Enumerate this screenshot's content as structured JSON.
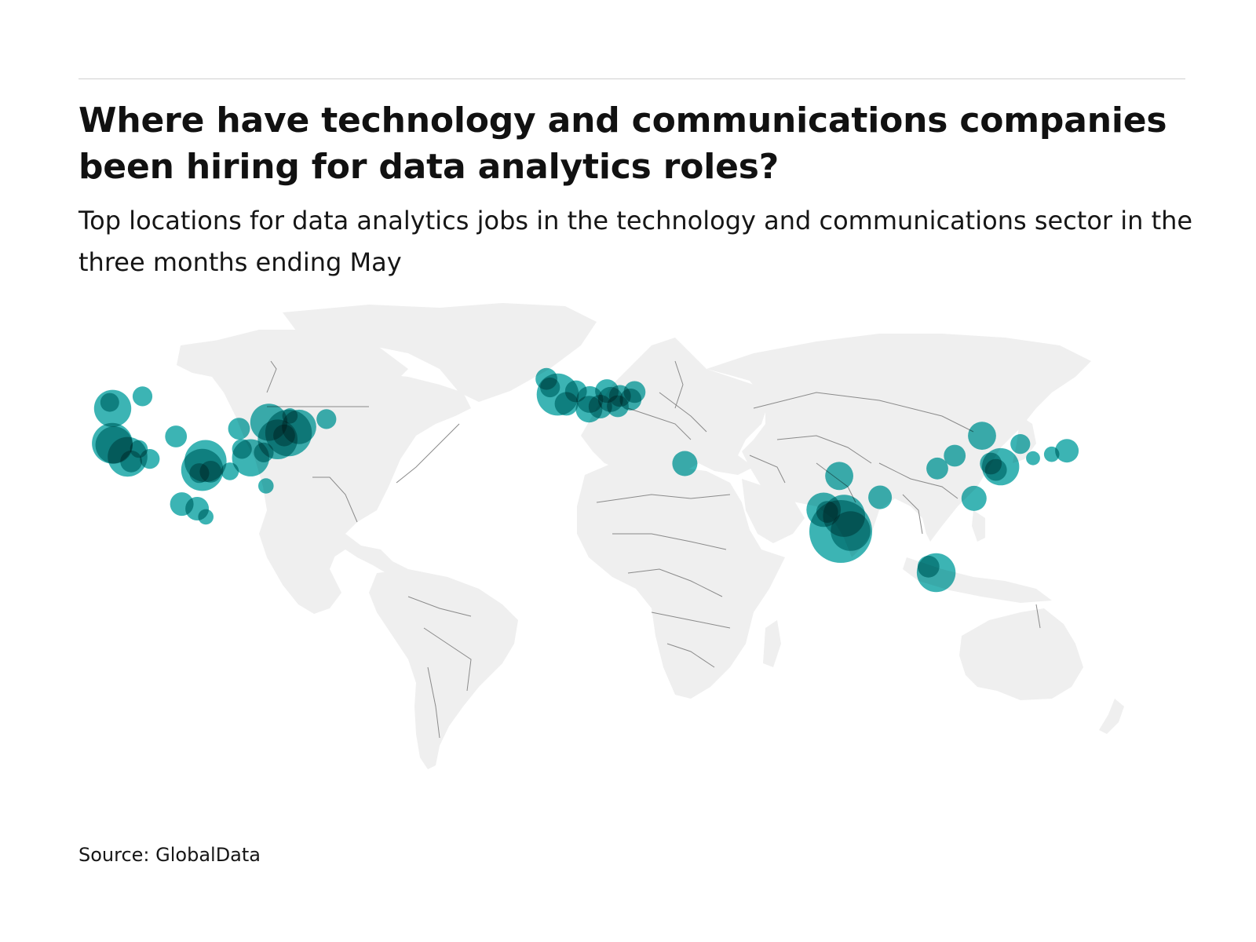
{
  "header": {
    "title": "Where have technology and communications companies been hiring for data analytics roles?",
    "subtitle": "Top locations for data analytics jobs in the technology and communications sector in the three months ending May"
  },
  "footer": {
    "source": "Source: GlobalData"
  },
  "colors": {
    "background": "#ffffff",
    "land": "#efefef",
    "borders": "#8a8a8a",
    "bubble": "#1aa7a7",
    "rule": "#d0d0d0"
  },
  "chart_data": {
    "type": "bubble-map",
    "basemap": "world",
    "locations": [
      {
        "lon": -122.3,
        "lat": 47.6,
        "size": 0.35
      },
      {
        "lon": -123.1,
        "lat": 49.3,
        "size": 0.09
      },
      {
        "lon": -122.4,
        "lat": 37.8,
        "size": 0.42
      },
      {
        "lon": -121.9,
        "lat": 37.3,
        "size": 0.35
      },
      {
        "lon": -118.2,
        "lat": 34.0,
        "size": 0.4
      },
      {
        "lon": -117.2,
        "lat": 32.7,
        "size": 0.12
      },
      {
        "lon": -115.1,
        "lat": 36.2,
        "size": 0.08
      },
      {
        "lon": -112.1,
        "lat": 33.4,
        "size": 0.1
      },
      {
        "lon": -104.9,
        "lat": 39.7,
        "size": 0.12
      },
      {
        "lon": -97.7,
        "lat": 30.3,
        "size": 0.45
      },
      {
        "lon": -96.8,
        "lat": 32.8,
        "size": 0.45
      },
      {
        "lon": -95.4,
        "lat": 29.8,
        "size": 0.12
      },
      {
        "lon": -98.5,
        "lat": 29.4,
        "size": 0.1
      },
      {
        "lon": -90.1,
        "lat": 29.9,
        "size": 0.08
      },
      {
        "lon": -87.6,
        "lat": 41.9,
        "size": 0.12
      },
      {
        "lon": -84.4,
        "lat": 33.7,
        "size": 0.35
      },
      {
        "lon": -86.8,
        "lat": 36.2,
        "size": 0.1
      },
      {
        "lon": -80.8,
        "lat": 35.2,
        "size": 0.1
      },
      {
        "lon": -79.4,
        "lat": 43.7,
        "size": 0.35
      },
      {
        "lon": -77.0,
        "lat": 38.9,
        "size": 0.4
      },
      {
        "lon": -75.2,
        "lat": 40.0,
        "size": 0.12
      },
      {
        "lon": -74.0,
        "lat": 40.7,
        "size": 0.55
      },
      {
        "lon": -71.1,
        "lat": 42.4,
        "size": 0.3
      },
      {
        "lon": -73.6,
        "lat": 45.5,
        "size": 0.06
      },
      {
        "lon": -63.6,
        "lat": 44.6,
        "size": 0.1
      },
      {
        "lon": -80.2,
        "lat": 25.8,
        "size": 0.06
      },
      {
        "lon": -103.3,
        "lat": 20.7,
        "size": 0.14
      },
      {
        "lon": -99.1,
        "lat": 19.4,
        "size": 0.14
      },
      {
        "lon": -96.7,
        "lat": 17.1,
        "size": 0.06
      },
      {
        "lon": -114.1,
        "lat": 51.0,
        "size": 0.1
      },
      {
        "lon": -0.1,
        "lat": 51.5,
        "size": 0.45
      },
      {
        "lon": -2.2,
        "lat": 53.5,
        "size": 0.1
      },
      {
        "lon": -3.2,
        "lat": 55.9,
        "size": 0.12
      },
      {
        "lon": 2.3,
        "lat": 48.9,
        "size": 0.14
      },
      {
        "lon": 4.9,
        "lat": 52.4,
        "size": 0.12
      },
      {
        "lon": 8.7,
        "lat": 50.1,
        "size": 0.18
      },
      {
        "lon": 8.5,
        "lat": 47.4,
        "size": 0.18
      },
      {
        "lon": 11.6,
        "lat": 48.1,
        "size": 0.14
      },
      {
        "lon": 13.4,
        "lat": 52.5,
        "size": 0.14
      },
      {
        "lon": 14.4,
        "lat": 50.1,
        "size": 0.16
      },
      {
        "lon": 16.4,
        "lat": 48.2,
        "size": 0.12
      },
      {
        "lon": 17.0,
        "lat": 51.1,
        "size": 0.12
      },
      {
        "lon": 19.9,
        "lat": 50.1,
        "size": 0.12
      },
      {
        "lon": 21.0,
        "lat": 52.2,
        "size": 0.12
      },
      {
        "lon": 34.8,
        "lat": 32.1,
        "size": 0.16
      },
      {
        "lon": 72.9,
        "lat": 19.1,
        "size": 0.3
      },
      {
        "lon": 73.9,
        "lat": 18.5,
        "size": 0.12
      },
      {
        "lon": 77.2,
        "lat": 28.6,
        "size": 0.2
      },
      {
        "lon": 78.5,
        "lat": 17.4,
        "size": 0.45
      },
      {
        "lon": 77.6,
        "lat": 13.0,
        "size": 1.0
      },
      {
        "lon": 80.3,
        "lat": 13.1,
        "size": 0.4
      },
      {
        "lon": 88.4,
        "lat": 22.6,
        "size": 0.14
      },
      {
        "lon": 103.8,
        "lat": 1.4,
        "size": 0.38
      },
      {
        "lon": 101.7,
        "lat": 3.1,
        "size": 0.12
      },
      {
        "lon": 114.2,
        "lat": 22.3,
        "size": 0.16
      },
      {
        "lon": 116.4,
        "lat": 39.9,
        "size": 0.2
      },
      {
        "lon": 121.5,
        "lat": 31.2,
        "size": 0.35
      },
      {
        "lon": 120.2,
        "lat": 30.3,
        "size": 0.12
      },
      {
        "lon": 118.8,
        "lat": 32.1,
        "size": 0.12
      },
      {
        "lon": 104.1,
        "lat": 30.7,
        "size": 0.12
      },
      {
        "lon": 108.9,
        "lat": 34.3,
        "size": 0.12
      },
      {
        "lon": 126.9,
        "lat": 37.6,
        "size": 0.1
      },
      {
        "lon": 135.5,
        "lat": 34.7,
        "size": 0.06
      },
      {
        "lon": 139.7,
        "lat": 35.7,
        "size": 0.14
      },
      {
        "lon": 130.4,
        "lat": 33.6,
        "size": 0.05
      }
    ]
  }
}
